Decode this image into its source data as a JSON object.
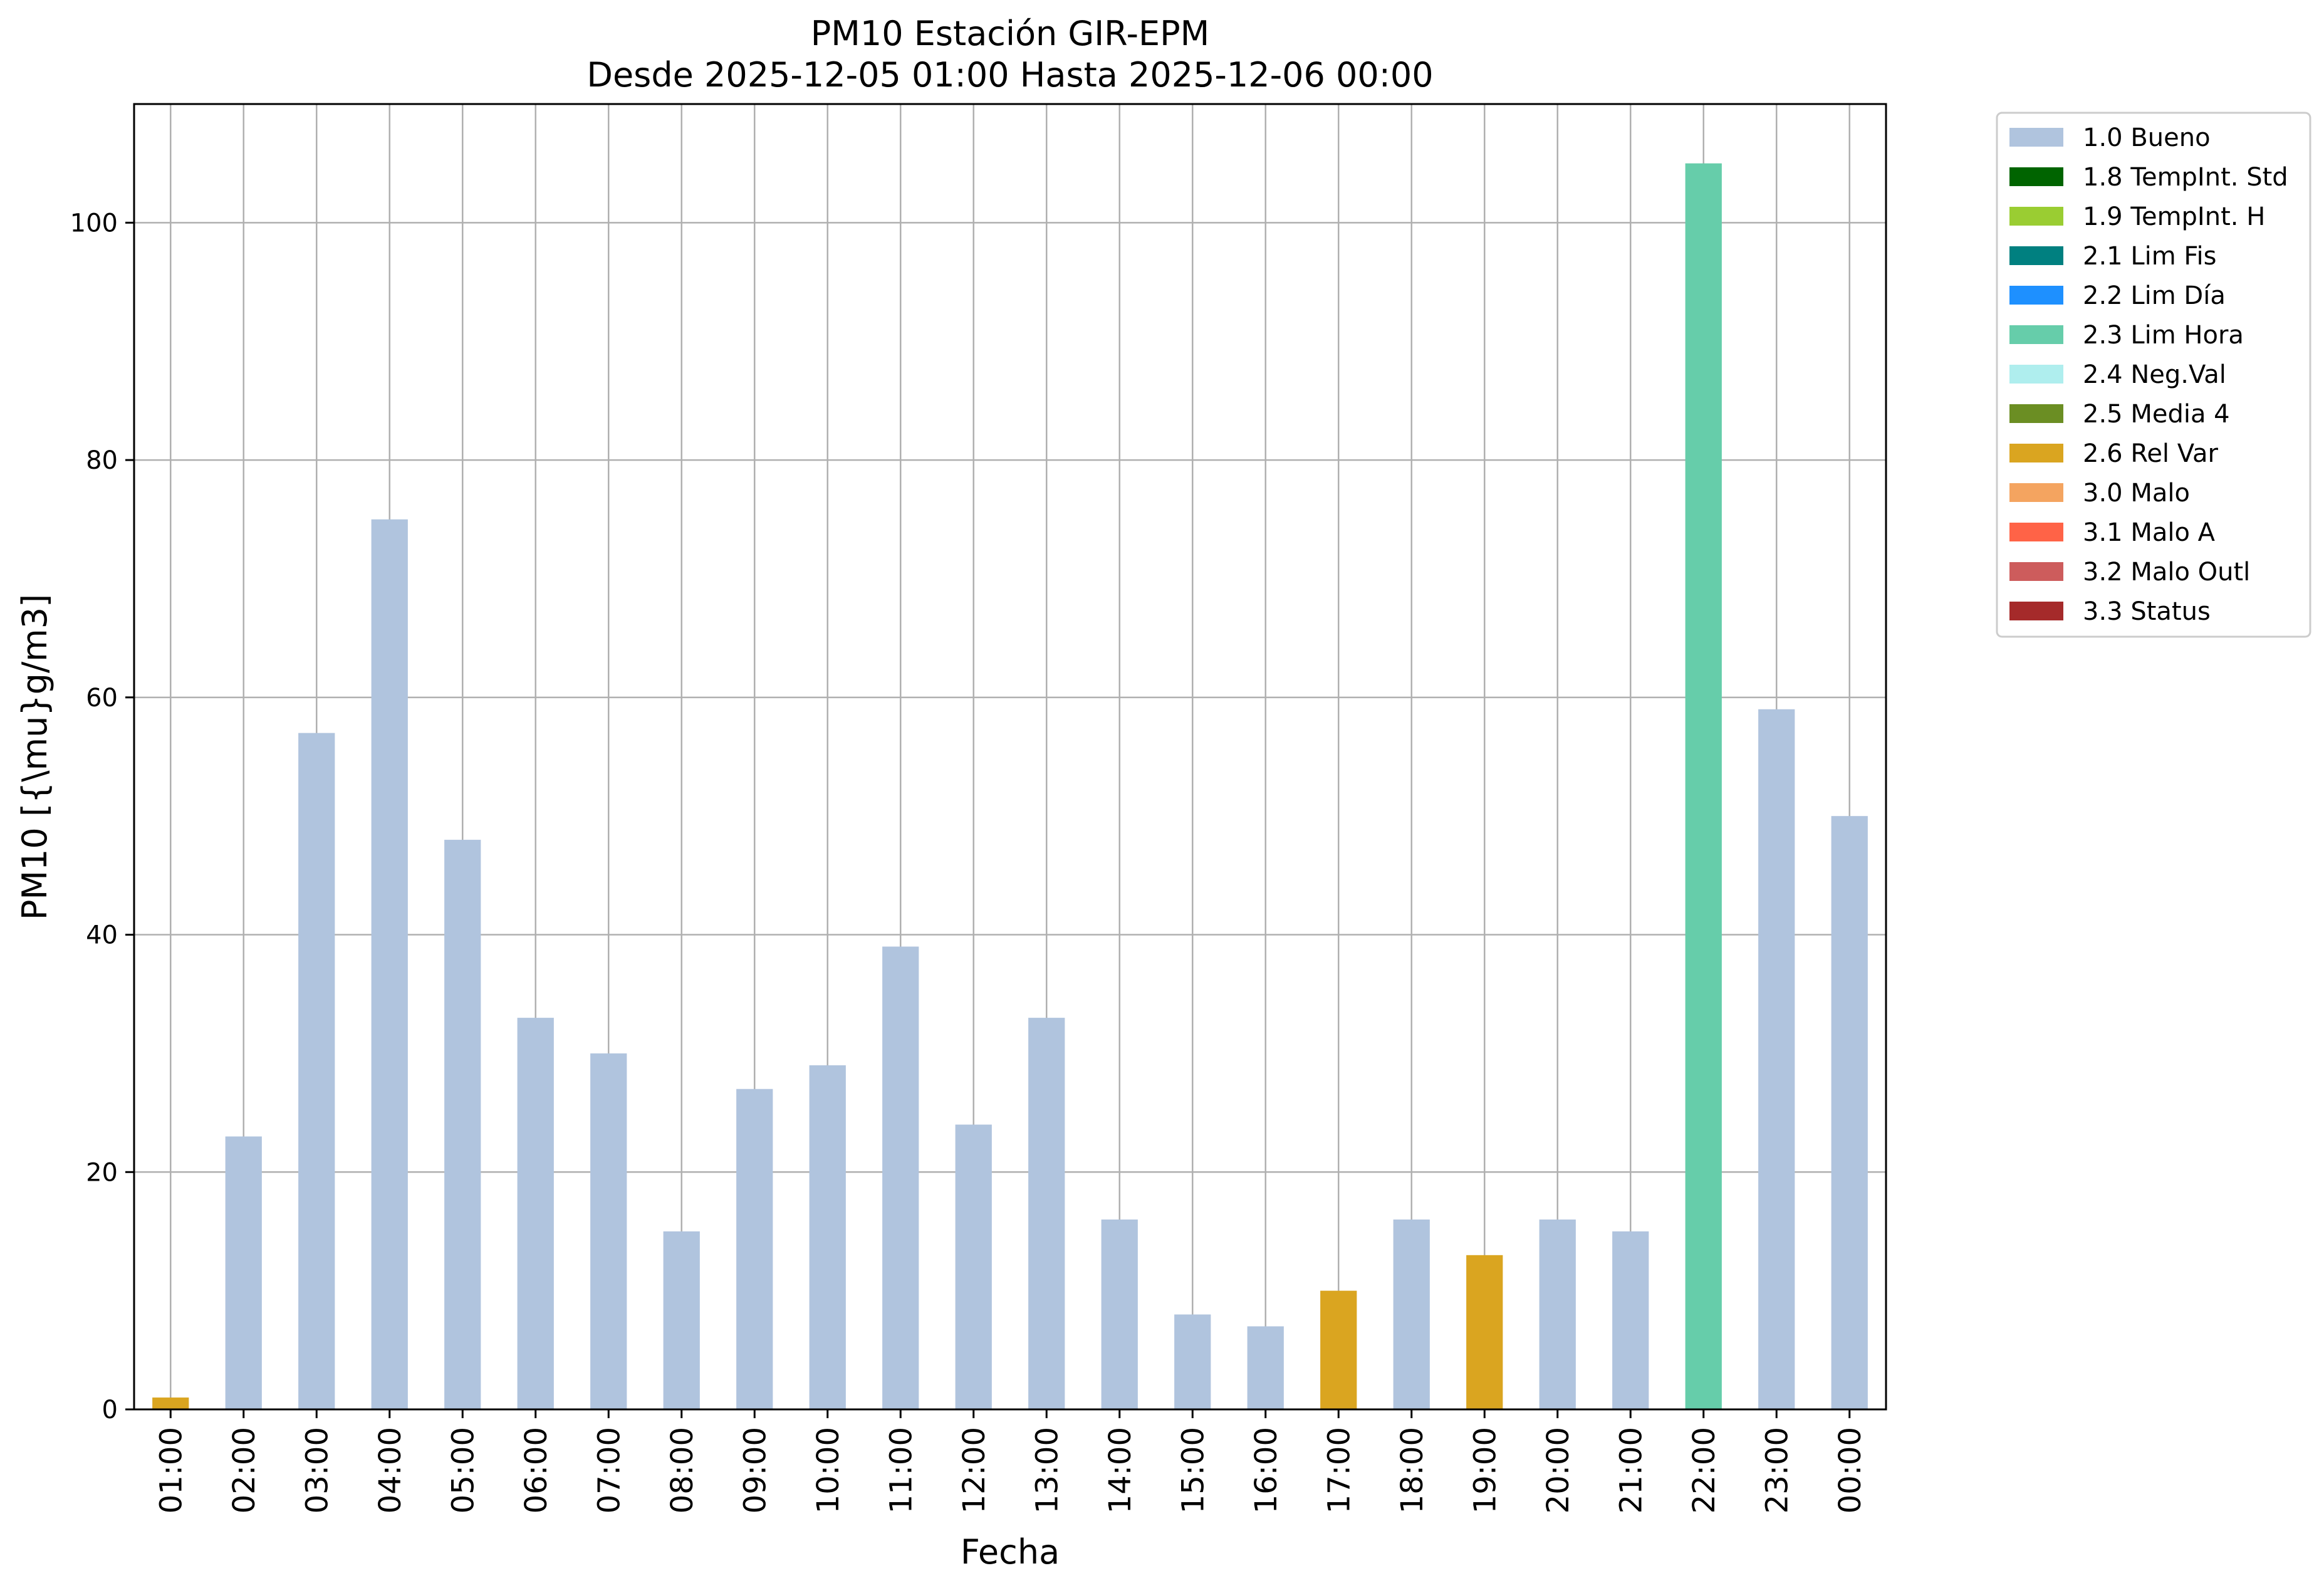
{
  "chart_data": {
    "type": "bar",
    "title": "PM10 Estación GIR-EPM",
    "subtitle": "Desde 2025-12-05 01:00 Hasta 2025-12-06 00:00",
    "xlabel": "Fecha",
    "ylabel": "PM10 [{\\mu}g/m3]",
    "ylim": [
      0,
      110
    ],
    "yticks": [
      0,
      20,
      40,
      60,
      80,
      100
    ],
    "grid": true,
    "legend_position": "outside-right",
    "categories": [
      "01:00",
      "02:00",
      "03:00",
      "04:00",
      "05:00",
      "06:00",
      "07:00",
      "08:00",
      "09:00",
      "10:00",
      "11:00",
      "12:00",
      "13:00",
      "14:00",
      "15:00",
      "16:00",
      "17:00",
      "18:00",
      "19:00",
      "20:00",
      "21:00",
      "22:00",
      "23:00",
      "00:00"
    ],
    "values": [
      1,
      23,
      57,
      75,
      48,
      33,
      30,
      15,
      27,
      29,
      39,
      24,
      33,
      16,
      8,
      7,
      10,
      16,
      13,
      16,
      15,
      105,
      59,
      50
    ],
    "flags": [
      "2.6 Rel Var",
      "1.0 Bueno",
      "1.0 Bueno",
      "1.0 Bueno",
      "1.0 Bueno",
      "1.0 Bueno",
      "1.0 Bueno",
      "1.0 Bueno",
      "1.0 Bueno",
      "1.0 Bueno",
      "1.0 Bueno",
      "1.0 Bueno",
      "1.0 Bueno",
      "1.0 Bueno",
      "1.0 Bueno",
      "1.0 Bueno",
      "2.6 Rel Var",
      "1.0 Bueno",
      "2.6 Rel Var",
      "1.0 Bueno",
      "1.0 Bueno",
      "2.3 Lim Hora",
      "1.0 Bueno",
      "1.0 Bueno"
    ],
    "legend": [
      {
        "label": "1.0 Bueno",
        "color": "#b0c4de"
      },
      {
        "label": "1.8 TempInt. Std",
        "color": "#006400"
      },
      {
        "label": "1.9 TempInt. H",
        "color": "#9acd32"
      },
      {
        "label": "2.1 Lim Fis",
        "color": "#008080"
      },
      {
        "label": "2.2 Lim Día",
        "color": "#1e90ff"
      },
      {
        "label": "2.3 Lim Hora",
        "color": "#66cdaa"
      },
      {
        "label": "2.4 Neg.Val",
        "color": "#afeeee"
      },
      {
        "label": "2.5 Media 4",
        "color": "#6b8e23"
      },
      {
        "label": "2.6 Rel Var",
        "color": "#daa520"
      },
      {
        "label": "3.0 Malo",
        "color": "#f4a460"
      },
      {
        "label": "3.1 Malo A",
        "color": "#ff6347"
      },
      {
        "label": "3.2 Malo Outl",
        "color": "#cd5c5c"
      },
      {
        "label": "3.3 Status",
        "color": "#a52a2a"
      }
    ]
  }
}
